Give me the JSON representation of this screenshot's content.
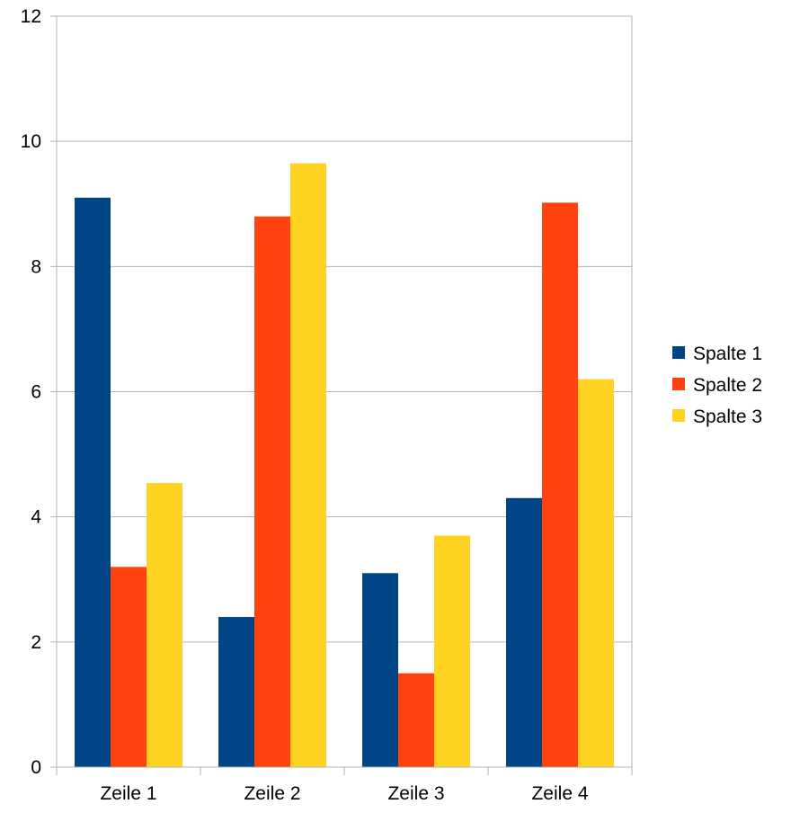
{
  "chart_data": {
    "type": "bar",
    "title": "",
    "xlabel": "",
    "ylabel": "",
    "categories": [
      "Zeile 1",
      "Zeile 2",
      "Zeile 3",
      "Zeile 4"
    ],
    "series": [
      {
        "name": "Spalte 1",
        "color": "#004586",
        "values": [
          9.1,
          2.4,
          3.1,
          4.3
        ]
      },
      {
        "name": "Spalte 2",
        "color": "#ff420e",
        "values": [
          3.2,
          8.8,
          1.5,
          9.02
        ]
      },
      {
        "name": "Spalte 3",
        "color": "#ffd320",
        "values": [
          4.54,
          9.65,
          3.7,
          6.2
        ]
      }
    ],
    "ylim": [
      0,
      12
    ],
    "yticks": [
      "0",
      "2",
      "4",
      "6",
      "8",
      "10",
      "12"
    ],
    "grid": true,
    "legend": "right"
  }
}
